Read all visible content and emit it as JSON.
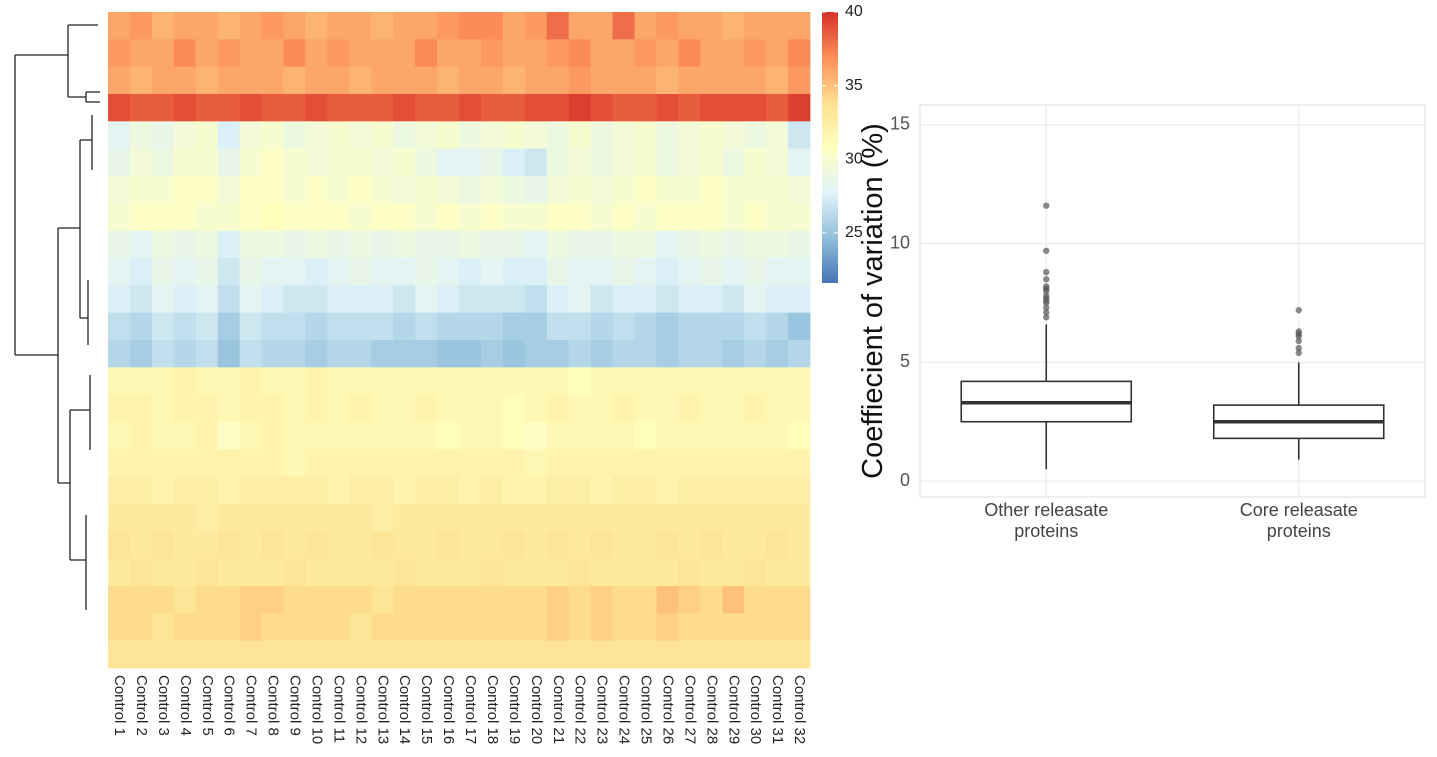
{
  "chart_data": [
    {
      "type": "heatmap",
      "x_categories": [
        "Control 1",
        "Control 2",
        "Control 3",
        "Control 4",
        "Control 5",
        "Control 6",
        "Control 7",
        "Control 8",
        "Control 9",
        "Control 10",
        "Control 11",
        "Control 12",
        "Control 13",
        "Control 14",
        "Control 15",
        "Control 16",
        "Control 17",
        "Control 18",
        "Control 19",
        "Control 20",
        "Control 21",
        "Control 22",
        "Control 23",
        "Control 24",
        "Control 25",
        "Control 26",
        "Control 27",
        "Control 28",
        "Control 29",
        "Control 30",
        "Control 31",
        "Control 32"
      ],
      "zlim": [
        21.6,
        40
      ],
      "zticks": [
        40,
        35,
        30,
        25
      ],
      "colors": [
        "#4575b4",
        "#91bfdb",
        "#e0f3f8",
        "#ffffbf",
        "#fee090",
        "#fc8d59",
        "#d73027"
      ],
      "values": [
        [
          36,
          36.5,
          35.5,
          36,
          36,
          35.5,
          36,
          36.5,
          36,
          35.5,
          36,
          36,
          35.5,
          36,
          36,
          36.5,
          37,
          37,
          36,
          36.5,
          38,
          36,
          36,
          38,
          36,
          36.5,
          36,
          36,
          35.5,
          36,
          36,
          36
        ],
        [
          36.5,
          36,
          36,
          37,
          36,
          36.5,
          36,
          36,
          37,
          36,
          36.5,
          36,
          36,
          36,
          37,
          36,
          36,
          36.5,
          36,
          36,
          36.5,
          37,
          36,
          36,
          36.5,
          36,
          37,
          36,
          36,
          36.5,
          36,
          37
        ],
        [
          36,
          35.5,
          36,
          36,
          35.5,
          36,
          36,
          36,
          35.5,
          36,
          36,
          35.5,
          36,
          36,
          36,
          35.5,
          36,
          36,
          35.5,
          36,
          36,
          36.5,
          36,
          36,
          36,
          35.5,
          36,
          36,
          36,
          36,
          35.5,
          36.5
        ],
        [
          39,
          38.5,
          38.5,
          39,
          38.5,
          38.5,
          39,
          38.5,
          38.5,
          39,
          38.5,
          38.5,
          38.5,
          39,
          38.5,
          38.5,
          39,
          38.5,
          38.5,
          39,
          39,
          39.5,
          39,
          38.5,
          38.5,
          39,
          38.5,
          39,
          39,
          39,
          38.5,
          39.5
        ],
        [
          28,
          29,
          28.5,
          29.5,
          30,
          27.5,
          29.5,
          30,
          29,
          29.5,
          30,
          29.5,
          30,
          29,
          29.5,
          30,
          29,
          29.5,
          30,
          29.5,
          29,
          30,
          29,
          29.5,
          30,
          29,
          29.5,
          30,
          29.5,
          29,
          29.5,
          27
        ],
        [
          28.5,
          29.5,
          29,
          30,
          30,
          28.5,
          30,
          30.5,
          30,
          29.5,
          30,
          30,
          29.5,
          30,
          29,
          28,
          28,
          28.5,
          27.5,
          27,
          29,
          29.5,
          29,
          29.5,
          30,
          29,
          29.5,
          30,
          29,
          30,
          29.5,
          28
        ],
        [
          29.5,
          30,
          30,
          30.5,
          30.5,
          29.5,
          30.5,
          30.5,
          30,
          30.5,
          30,
          30.5,
          30,
          29.5,
          30,
          29.5,
          29,
          29.5,
          29,
          28.5,
          29.5,
          30,
          29.5,
          30,
          30.5,
          30,
          30,
          30.5,
          30,
          30,
          30,
          29.5
        ],
        [
          30,
          30.5,
          30.5,
          30.5,
          30,
          30,
          30.5,
          31,
          30.5,
          30.5,
          30.5,
          30,
          30.5,
          30.5,
          30,
          30.5,
          30,
          30.5,
          30,
          30,
          30.5,
          30.5,
          30,
          30.5,
          30,
          30.5,
          30.5,
          30.5,
          30,
          30.5,
          30,
          30
        ],
        [
          28.5,
          28,
          29,
          28.5,
          29,
          27.5,
          29,
          29,
          28.5,
          29,
          28.5,
          29,
          28.5,
          29,
          28.5,
          28.5,
          29,
          28.5,
          28.5,
          28,
          29,
          28.5,
          28.5,
          29,
          29,
          28,
          28.5,
          29,
          28.5,
          29,
          29,
          28.5
        ],
        [
          28,
          27.5,
          28.5,
          28,
          28.5,
          27,
          28.5,
          28,
          28,
          27.5,
          28,
          28.5,
          28,
          28,
          28.5,
          28,
          27.5,
          28,
          27.5,
          27.5,
          28.5,
          28,
          28,
          28.5,
          28,
          27.5,
          28,
          28.5,
          28,
          28.5,
          28,
          28
        ],
        [
          27.5,
          27,
          28,
          27.5,
          28,
          26.5,
          28,
          27.5,
          27,
          27,
          27.5,
          27.5,
          27.5,
          27,
          28,
          27.5,
          27,
          27,
          27,
          26.5,
          27.5,
          28,
          27,
          27.5,
          27.5,
          27,
          27.5,
          27.5,
          27,
          28,
          27.5,
          27.5
        ],
        [
          26.5,
          26,
          27,
          26.5,
          27,
          25.5,
          27,
          26.5,
          26.5,
          26,
          26.5,
          26.5,
          26.5,
          26,
          26.5,
          26,
          26,
          26,
          25.5,
          25.5,
          26.5,
          26.5,
          26,
          26.5,
          26,
          25.5,
          26,
          26,
          26,
          26.5,
          26,
          25
        ],
        [
          26,
          25.5,
          26.5,
          26,
          26.5,
          25,
          26.5,
          26,
          26,
          25.5,
          26,
          26,
          25.5,
          25.5,
          25.5,
          25,
          25,
          25.5,
          25,
          25.5,
          25.5,
          26,
          25.5,
          26,
          26,
          25.5,
          26,
          26,
          25.5,
          26,
          25.5,
          26
        ],
        [
          31.5,
          31.5,
          31.5,
          32,
          31.5,
          31.5,
          32,
          31.5,
          31.5,
          32,
          31.5,
          31.5,
          31.5,
          31.5,
          31.5,
          31.5,
          31.5,
          31.5,
          31.5,
          31.5,
          31.5,
          31,
          31.5,
          31.5,
          31.5,
          31.5,
          31.5,
          31.5,
          31.5,
          31.5,
          31.5,
          31.5
        ],
        [
          32,
          32,
          31.5,
          32,
          32,
          31.5,
          32,
          32,
          31.5,
          32,
          31.5,
          32,
          31.5,
          31.5,
          32,
          31.5,
          31.5,
          31.5,
          31,
          31.5,
          32,
          31.5,
          31.5,
          32,
          31.5,
          31.5,
          32,
          31.5,
          31.5,
          32,
          31.5,
          31.5
        ],
        [
          31.5,
          32,
          31.5,
          31.5,
          32,
          30.5,
          31.5,
          32,
          31.5,
          31.5,
          31.5,
          31.5,
          31.5,
          31.5,
          31.5,
          31,
          31.5,
          31.5,
          31,
          30.5,
          31.5,
          31.5,
          31.5,
          31.5,
          31,
          31.5,
          31.5,
          31.5,
          31.5,
          31.5,
          31.5,
          31
        ],
        [
          32,
          32,
          32,
          32,
          32,
          32,
          32,
          32,
          31.5,
          32,
          32,
          32,
          32,
          32,
          32,
          32,
          32,
          32,
          32,
          31.5,
          32,
          32,
          32,
          32,
          32,
          32,
          32,
          32,
          32,
          32,
          32,
          32
        ],
        [
          32.5,
          32.5,
          32,
          32.5,
          32.5,
          32,
          32.5,
          32.5,
          32.5,
          32.5,
          32,
          32.5,
          32.5,
          32,
          32.5,
          32.5,
          32,
          32.5,
          32,
          32,
          32.5,
          32.5,
          32,
          32.5,
          32.5,
          32,
          32.5,
          32.5,
          32.5,
          32.5,
          32.5,
          32.5
        ],
        [
          33,
          33,
          33,
          33,
          32.5,
          33,
          33,
          33,
          33,
          33,
          33,
          33,
          32.5,
          33,
          33,
          33,
          33,
          33,
          33,
          33,
          33,
          33,
          33,
          33,
          33,
          33,
          33,
          33,
          33,
          33,
          33,
          33
        ],
        [
          33.5,
          33,
          33.5,
          33,
          33,
          33.5,
          33,
          33.5,
          33,
          33.5,
          33,
          33,
          33.5,
          33,
          33,
          33.5,
          33,
          33,
          33.5,
          33,
          33.5,
          33,
          33.5,
          33,
          33,
          33.5,
          33,
          33.5,
          33,
          33,
          33.5,
          33
        ],
        [
          33,
          33.5,
          33,
          33,
          33.5,
          33,
          33,
          33,
          33.5,
          33,
          33,
          33,
          33,
          33.5,
          33,
          33,
          33,
          33.5,
          33,
          33,
          33,
          33.5,
          33,
          33,
          33,
          33,
          33.5,
          33,
          33,
          33.5,
          33,
          33
        ],
        [
          34,
          34,
          34,
          33.5,
          34,
          34,
          34.5,
          34.5,
          34,
          34,
          34,
          34,
          33.5,
          34,
          34,
          34,
          34,
          34,
          34,
          34,
          34.5,
          34,
          34.5,
          34,
          34,
          35,
          34.5,
          34,
          35,
          34,
          34,
          34
        ],
        [
          34,
          34,
          33.5,
          34,
          34,
          34,
          34.5,
          34,
          34,
          34,
          34,
          33.5,
          34,
          34,
          34,
          34,
          34,
          34,
          34,
          34,
          34.5,
          34,
          34.5,
          34,
          34,
          34.5,
          34,
          34,
          34,
          34,
          34,
          34
        ],
        [
          33.5,
          33.5,
          33.5,
          33.5,
          33.5,
          33.5,
          33.5,
          33.5,
          33.5,
          33.5,
          33.5,
          33.5,
          33.5,
          33.5,
          33.5,
          33.5,
          33.5,
          33.5,
          33.5,
          33.5,
          33.5,
          33.5,
          33.5,
          33.5,
          33.5,
          33.5,
          33.5,
          33.5,
          33.5,
          33.5,
          33.5,
          33.5
        ]
      ]
    },
    {
      "type": "box",
      "ylabel": "Coeffiecient of variation (%)",
      "categories": [
        "Other releasate proteins",
        "Core releasate proteins"
      ],
      "ylim": [
        -0.67,
        15.84
      ],
      "yticks": [
        0,
        5,
        10,
        15
      ],
      "grid": true,
      "boxes": [
        {
          "whisker_low": 0.5,
          "q1": 2.5,
          "median": 3.3,
          "q3": 4.2,
          "whisker_high": 6.6,
          "outliers": [
            6.9,
            7.1,
            7.3,
            7.5,
            7.6,
            7.7,
            7.8,
            8.0,
            8.1,
            8.2,
            8.5,
            8.8,
            9.7,
            11.6
          ]
        },
        {
          "whisker_low": 0.9,
          "q1": 1.8,
          "median": 2.5,
          "q3": 3.2,
          "whisker_high": 5.0,
          "outliers": [
            5.4,
            5.6,
            5.9,
            6.1,
            6.2,
            6.3,
            7.2
          ]
        }
      ]
    }
  ]
}
